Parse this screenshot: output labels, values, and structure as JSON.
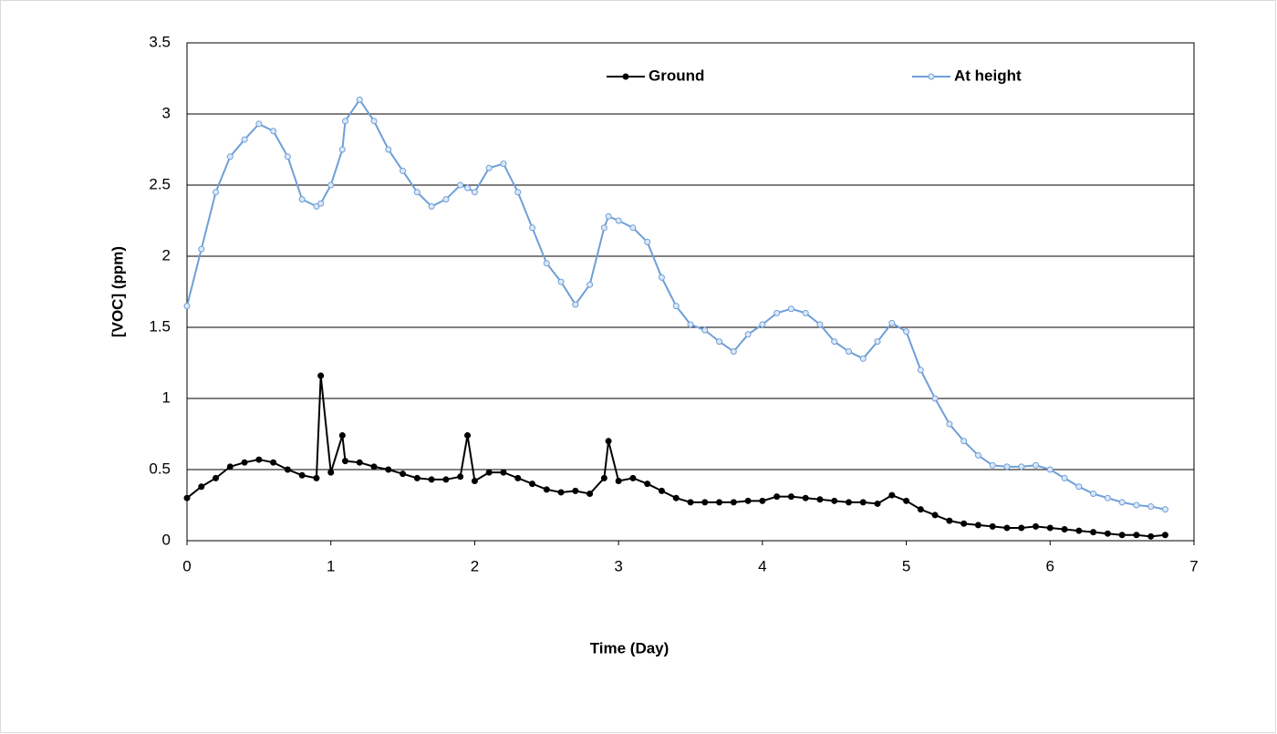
{
  "chart_data": {
    "type": "line",
    "x_label": "Time (Day)",
    "y_label": "[VOC] (ppm)",
    "x": [
      0,
      0.1,
      0.2,
      0.3,
      0.4,
      0.5,
      0.6,
      0.7,
      0.8,
      0.9,
      0.93,
      1.0,
      1.08,
      1.1,
      1.2,
      1.3,
      1.4,
      1.5,
      1.6,
      1.7,
      1.8,
      1.9,
      1.95,
      2.0,
      2.1,
      2.2,
      2.3,
      2.4,
      2.5,
      2.6,
      2.7,
      2.8,
      2.9,
      2.93,
      3.0,
      3.1,
      3.2,
      3.3,
      3.4,
      3.5,
      3.6,
      3.7,
      3.8,
      3.9,
      4.0,
      4.1,
      4.2,
      4.3,
      4.4,
      4.5,
      4.6,
      4.7,
      4.8,
      4.9,
      5.0,
      5.1,
      5.2,
      5.3,
      5.4,
      5.5,
      5.6,
      5.7,
      5.8,
      5.9,
      6.0,
      6.1,
      6.2,
      6.3,
      6.4,
      6.5,
      6.6,
      6.7,
      6.8
    ],
    "series": [
      {
        "name": "Ground",
        "color": "#000000",
        "marker_fill": "#000000",
        "values": [
          0.3,
          0.38,
          0.44,
          0.52,
          0.55,
          0.57,
          0.55,
          0.5,
          0.46,
          0.44,
          1.16,
          0.48,
          0.74,
          0.56,
          0.55,
          0.52,
          0.5,
          0.47,
          0.44,
          0.43,
          0.43,
          0.45,
          0.74,
          0.42,
          0.48,
          0.48,
          0.44,
          0.4,
          0.36,
          0.34,
          0.35,
          0.33,
          0.44,
          0.7,
          0.42,
          0.44,
          0.4,
          0.35,
          0.3,
          0.27,
          0.27,
          0.27,
          0.27,
          0.28,
          0.28,
          0.31,
          0.31,
          0.3,
          0.29,
          0.28,
          0.27,
          0.27,
          0.26,
          0.32,
          0.28,
          0.22,
          0.18,
          0.14,
          0.12,
          0.11,
          0.1,
          0.09,
          0.09,
          0.1,
          0.09,
          0.08,
          0.07,
          0.06,
          0.05,
          0.04,
          0.04,
          0.03,
          0.04
        ]
      },
      {
        "name": "At height",
        "color": "#6f9fd8",
        "marker_fill": "#dce8f7",
        "values": [
          1.65,
          2.05,
          2.45,
          2.7,
          2.82,
          2.93,
          2.88,
          2.7,
          2.4,
          2.35,
          2.37,
          2.5,
          2.75,
          2.95,
          3.1,
          2.95,
          2.75,
          2.6,
          2.45,
          2.35,
          2.4,
          2.5,
          2.48,
          2.45,
          2.62,
          2.65,
          2.45,
          2.2,
          1.95,
          1.82,
          1.66,
          1.8,
          2.2,
          2.28,
          2.25,
          2.2,
          2.1,
          1.85,
          1.65,
          1.52,
          1.48,
          1.4,
          1.33,
          1.45,
          1.52,
          1.6,
          1.63,
          1.6,
          1.52,
          1.4,
          1.33,
          1.28,
          1.4,
          1.53,
          1.47,
          1.2,
          1.0,
          0.82,
          0.7,
          0.6,
          0.53,
          0.52,
          0.52,
          0.53,
          0.5,
          0.44,
          0.38,
          0.33,
          0.3,
          0.27,
          0.25,
          0.24,
          0.22
        ]
      }
    ],
    "xlim": [
      0,
      7
    ],
    "xticks": [
      0,
      1,
      2,
      3,
      4,
      5,
      6,
      7
    ],
    "ylim": [
      0,
      3.5
    ],
    "yticks": [
      0,
      0.5,
      1,
      1.5,
      2,
      2.5,
      3,
      3.5
    ],
    "grid": true
  }
}
